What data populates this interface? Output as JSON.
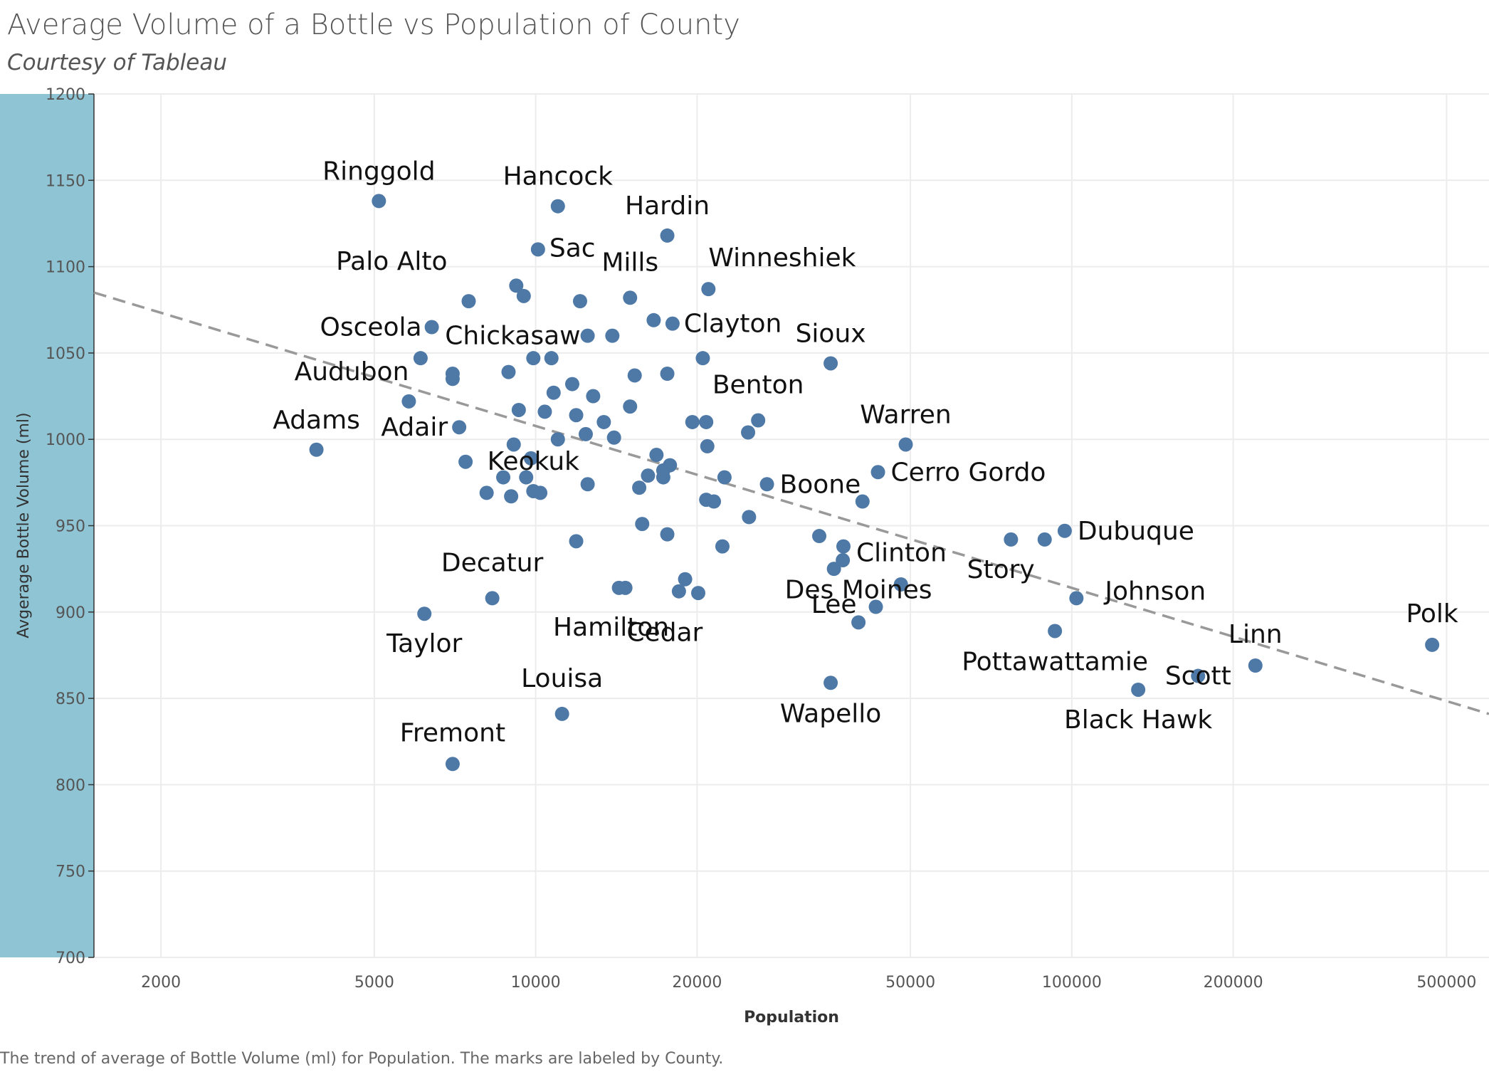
{
  "title": "Average Volume of a Bottle  vs Population of County",
  "subtitle": "Courtesy of Tableau",
  "footer": "The trend of average of Bottle Volume (ml) for Population.  The marks are labeled by County.",
  "colors": {
    "point": "#4e79a7",
    "trend": "#999999",
    "axis_band": "#8fc4d4",
    "grid": "#ececec"
  },
  "chart_data": {
    "type": "scatter",
    "xlabel": "Population",
    "ylabel": "Avgerage Bottle Volume (ml)",
    "x_scale": "log",
    "xlim": [
      1500,
      600000
    ],
    "ylim": [
      700,
      1200
    ],
    "x_ticks": [
      2000,
      5000,
      10000,
      20000,
      50000,
      100000,
      200000,
      500000
    ],
    "x_tick_labels": [
      "2000",
      "5000",
      "10000",
      "20000",
      "50000",
      "100000",
      "200000",
      "500000"
    ],
    "y_ticks": [
      700,
      750,
      800,
      850,
      900,
      950,
      1000,
      1050,
      1100,
      1150,
      1200
    ],
    "y_tick_labels": [
      "700",
      "750",
      "800",
      "850",
      "900",
      "950",
      "1000",
      "1050",
      "1100",
      "1150",
      "1200"
    ],
    "grid": true,
    "legend": "none",
    "trend_line": {
      "style": "dashed",
      "points": [
        [
          1500,
          1085
        ],
        [
          600000,
          841
        ]
      ]
    },
    "points": [
      {
        "label": "Ringgold",
        "x": 5100,
        "y": 1138
      },
      {
        "label": "Hancock",
        "x": 11000,
        "y": 1135
      },
      {
        "label": "Hardin",
        "x": 17600,
        "y": 1118
      },
      {
        "label": "Palo Alto",
        "x": 7500,
        "y": 1080
      },
      {
        "label": "Sac",
        "x": 10100,
        "y": 1110
      },
      {
        "label": "Mills",
        "x": 15000,
        "y": 1082
      },
      {
        "label": "Winneshiek",
        "x": 21000,
        "y": 1087
      },
      {
        "label": "Osceola",
        "x": 6400,
        "y": 1065
      },
      {
        "label": "Chickasaw",
        "x": 12500,
        "y": 1060
      },
      {
        "label": "Clayton",
        "x": 18000,
        "y": 1067
      },
      {
        "label": "Sioux",
        "x": 35500,
        "y": 1044
      },
      {
        "label": "Audubon",
        "x": 5800,
        "y": 1022
      },
      {
        "label": "Benton",
        "x": 26000,
        "y": 1011
      },
      {
        "label": "Adams",
        "x": 3900,
        "y": 994
      },
      {
        "label": "Adair",
        "x": 7200,
        "y": 1007
      },
      {
        "label": "Warren",
        "x": 49000,
        "y": 997
      },
      {
        "label": "Cerro Gordo",
        "x": 43500,
        "y": 981
      },
      {
        "label": "Boone",
        "x": 27000,
        "y": 974
      },
      {
        "label": "Keokuk",
        "x": 9900,
        "y": 970
      },
      {
        "label": "Dubuque",
        "x": 97000,
        "y": 947
      },
      {
        "label": "Clinton",
        "x": 37500,
        "y": 938
      },
      {
        "label": "Decatur",
        "x": 8300,
        "y": 908
      },
      {
        "label": "Story",
        "x": 89000,
        "y": 942
      },
      {
        "label": "Lee",
        "x": 36000,
        "y": 925
      },
      {
        "label": "Johnson",
        "x": 102000,
        "y": 908
      },
      {
        "label": "Hamilton",
        "x": 14700,
        "y": 914
      },
      {
        "label": "Cedar",
        "x": 18500,
        "y": 912
      },
      {
        "label": "Polk",
        "x": 470000,
        "y": 881
      },
      {
        "label": "Taylor",
        "x": 6200,
        "y": 899
      },
      {
        "label": "Linn",
        "x": 220000,
        "y": 869
      },
      {
        "label": "Des Moines",
        "x": 40000,
        "y": 894
      },
      {
        "label": "Pottawattamie",
        "x": 93000,
        "y": 889
      },
      {
        "label": "Scott",
        "x": 172000,
        "y": 863
      },
      {
        "label": "Louisa",
        "x": 11200,
        "y": 841
      },
      {
        "label": "Wapello",
        "x": 35500,
        "y": 859
      },
      {
        "label": "Black Hawk",
        "x": 133000,
        "y": 855
      },
      {
        "label": "Fremont",
        "x": 7000,
        "y": 812
      },
      {
        "label": "",
        "x": 9200,
        "y": 1089
      },
      {
        "label": "",
        "x": 9500,
        "y": 1083
      },
      {
        "label": "",
        "x": 12100,
        "y": 1080
      },
      {
        "label": "",
        "x": 16600,
        "y": 1069
      },
      {
        "label": "",
        "x": 13900,
        "y": 1060
      },
      {
        "label": "",
        "x": 6100,
        "y": 1047
      },
      {
        "label": "",
        "x": 9900,
        "y": 1047
      },
      {
        "label": "",
        "x": 10700,
        "y": 1047
      },
      {
        "label": "",
        "x": 20500,
        "y": 1047
      },
      {
        "label": "",
        "x": 7000,
        "y": 1038
      },
      {
        "label": "",
        "x": 7000,
        "y": 1035
      },
      {
        "label": "",
        "x": 8900,
        "y": 1039
      },
      {
        "label": "",
        "x": 15300,
        "y": 1037
      },
      {
        "label": "",
        "x": 17600,
        "y": 1038
      },
      {
        "label": "",
        "x": 11700,
        "y": 1032
      },
      {
        "label": "",
        "x": 10800,
        "y": 1027
      },
      {
        "label": "",
        "x": 12800,
        "y": 1025
      },
      {
        "label": "",
        "x": 9300,
        "y": 1017
      },
      {
        "label": "",
        "x": 10400,
        "y": 1016
      },
      {
        "label": "",
        "x": 11900,
        "y": 1014
      },
      {
        "label": "",
        "x": 15000,
        "y": 1019
      },
      {
        "label": "",
        "x": 13400,
        "y": 1010
      },
      {
        "label": "",
        "x": 19600,
        "y": 1010
      },
      {
        "label": "",
        "x": 20800,
        "y": 1010
      },
      {
        "label": "",
        "x": 24900,
        "y": 1004
      },
      {
        "label": "",
        "x": 12400,
        "y": 1003
      },
      {
        "label": "",
        "x": 11000,
        "y": 1000
      },
      {
        "label": "",
        "x": 14000,
        "y": 1001
      },
      {
        "label": "",
        "x": 9100,
        "y": 997
      },
      {
        "label": "",
        "x": 20900,
        "y": 996
      },
      {
        "label": "",
        "x": 9800,
        "y": 989
      },
      {
        "label": "",
        "x": 7400,
        "y": 987
      },
      {
        "label": "",
        "x": 16800,
        "y": 991
      },
      {
        "label": "",
        "x": 17800,
        "y": 985
      },
      {
        "label": "",
        "x": 8700,
        "y": 978
      },
      {
        "label": "",
        "x": 9600,
        "y": 978
      },
      {
        "label": "",
        "x": 16200,
        "y": 979
      },
      {
        "label": "",
        "x": 17300,
        "y": 978
      },
      {
        "label": "",
        "x": 22500,
        "y": 978
      },
      {
        "label": "",
        "x": 17300,
        "y": 982
      },
      {
        "label": "",
        "x": 12500,
        "y": 974
      },
      {
        "label": "",
        "x": 15600,
        "y": 972
      },
      {
        "label": "",
        "x": 8100,
        "y": 969
      },
      {
        "label": "",
        "x": 9000,
        "y": 967
      },
      {
        "label": "",
        "x": 10200,
        "y": 969
      },
      {
        "label": "",
        "x": 20800,
        "y": 965
      },
      {
        "label": "",
        "x": 21500,
        "y": 964
      },
      {
        "label": "",
        "x": 40700,
        "y": 964
      },
      {
        "label": "",
        "x": 25000,
        "y": 955
      },
      {
        "label": "",
        "x": 15800,
        "y": 951
      },
      {
        "label": "",
        "x": 17600,
        "y": 945
      },
      {
        "label": "",
        "x": 33800,
        "y": 944
      },
      {
        "label": "",
        "x": 11900,
        "y": 941
      },
      {
        "label": "",
        "x": 22300,
        "y": 938
      },
      {
        "label": "",
        "x": 77000,
        "y": 942
      },
      {
        "label": "",
        "x": 37400,
        "y": 930
      },
      {
        "label": "",
        "x": 19000,
        "y": 919
      },
      {
        "label": "",
        "x": 48000,
        "y": 916
      },
      {
        "label": "",
        "x": 14300,
        "y": 914
      },
      {
        "label": "",
        "x": 20100,
        "y": 911
      },
      {
        "label": "",
        "x": 43100,
        "y": 903
      }
    ]
  }
}
